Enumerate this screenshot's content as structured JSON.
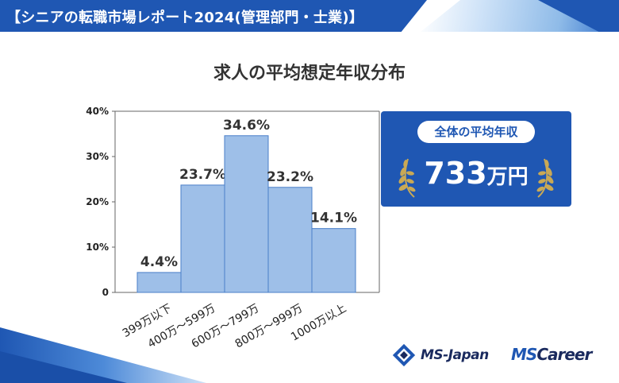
{
  "header": {
    "title": "【シニアの転職市場レポート2024(管理部門・士業)】"
  },
  "chart_data": {
    "type": "bar",
    "title": "求人の平均想定年収分布",
    "categories": [
      "399万以下",
      "400万～599万",
      "600万～799万",
      "800万～999万",
      "1000万以上"
    ],
    "values": [
      4.4,
      23.7,
      34.6,
      23.2,
      14.1
    ],
    "value_labels": [
      "4.4%",
      "23.7%",
      "34.6%",
      "23.2%",
      "14.1%"
    ],
    "yticks": [
      0,
      10,
      20,
      30,
      40
    ],
    "ytick_labels": [
      "0",
      "10%",
      "20%",
      "30%",
      "40%"
    ],
    "ylim": [
      0,
      40
    ],
    "xlabel": "",
    "ylabel": "",
    "grid": false,
    "bar_color": "#9ebfe8",
    "bar_edge_color": "#4a7fc8"
  },
  "average_box": {
    "label": "全体の平均年収",
    "value_number": "733",
    "value_unit": "万円",
    "background": "#1f57b3",
    "laurel_color": "#c9a955"
  },
  "logos": {
    "ms_japan": "MS-Japan",
    "ms_career_ms": "MS",
    "ms_career_rest": "Career"
  }
}
